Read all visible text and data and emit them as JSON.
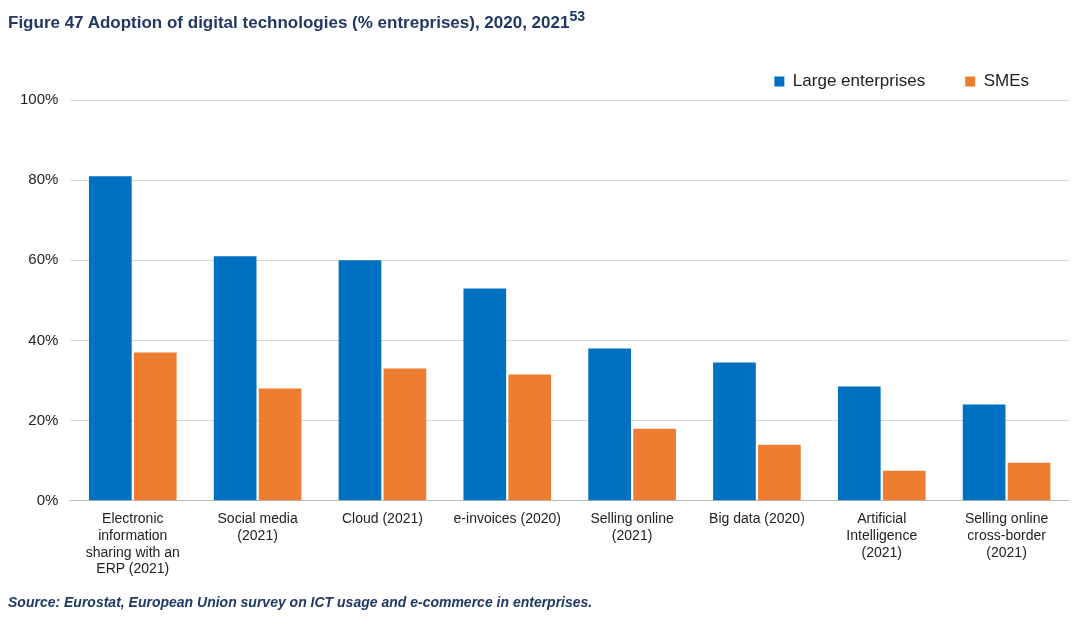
{
  "chart_data": {
    "type": "bar",
    "title": "Figure 47 Adoption of digital technologies (% entreprises), 2020, 2021$^{53}$",
    "categories": [
      "Electronic information sharing with an ERP (2021)",
      "Social media (2021)",
      "Cloud (2021)",
      "e-invoices (2020)",
      "Selling online (2021)",
      "Big data (2020)",
      "Artificial Intelligence (2021)",
      "Selling online cross-border (2021)"
    ],
    "series": [
      {
        "name": "Large enterprises",
        "color": "#0070c0",
        "values": [
          81,
          61,
          60,
          53,
          38,
          34.5,
          28.5,
          24
        ]
      },
      {
        "name": "SMEs",
        "color": "#ed7d31",
        "values": [
          37,
          28,
          33,
          31.5,
          18,
          14,
          7.5,
          9.5
        ]
      }
    ],
    "ylim": [
      0,
      100
    ],
    "yticks": [
      {
        "value": 0,
        "label": "0%"
      },
      {
        "value": 20,
        "label": "20%"
      },
      {
        "value": 40,
        "label": "40%"
      },
      {
        "value": 60,
        "label": "60%"
      },
      {
        "value": 80,
        "label": "80%"
      },
      {
        "value": 100,
        "label": "100%"
      }
    ],
    "grid": "y",
    "legend": "top right",
    "annotations": [
      "Source: Eurostat, European Union survey on ICT usage and e-commerce in enterprises."
    ]
  }
}
